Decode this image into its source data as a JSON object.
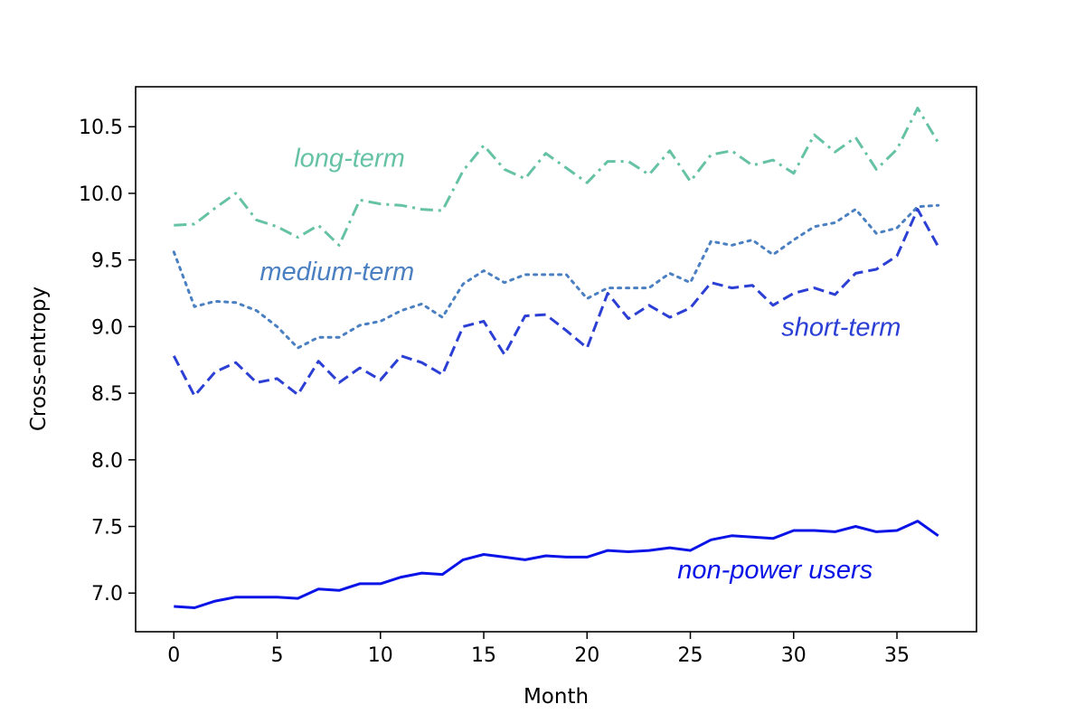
{
  "chart_data": {
    "type": "line",
    "title": "",
    "xlabel": "Month",
    "ylabel": "Cross-entropy",
    "xlim": [
      -1.85,
      38.85
    ],
    "ylim": [
      6.71,
      10.8
    ],
    "xticks": [
      0,
      5,
      10,
      15,
      20,
      25,
      30,
      35
    ],
    "yticks": [
      7.0,
      7.5,
      8.0,
      8.5,
      9.0,
      9.5,
      10.0,
      10.5
    ],
    "grid": false,
    "legend": "none",
    "x": [
      0,
      1,
      2,
      3,
      4,
      5,
      6,
      7,
      8,
      9,
      10,
      11,
      12,
      13,
      14,
      15,
      16,
      17,
      18,
      19,
      20,
      21,
      22,
      23,
      24,
      25,
      26,
      27,
      28,
      29,
      30,
      31,
      32,
      33,
      34,
      35,
      36,
      37
    ],
    "series": [
      {
        "name": "long-term",
        "color": "#66c2a5",
        "style": "dashdot",
        "label_at": [
          8.5,
          10.2
        ],
        "values": [
          9.76,
          9.77,
          9.89,
          10.0,
          9.8,
          9.75,
          9.67,
          9.76,
          9.61,
          9.95,
          9.92,
          9.91,
          9.88,
          9.87,
          10.17,
          10.36,
          10.18,
          10.11,
          10.3,
          10.19,
          10.08,
          10.24,
          10.24,
          10.14,
          10.32,
          10.09,
          10.29,
          10.32,
          10.21,
          10.25,
          10.15,
          10.44,
          10.31,
          10.42,
          10.18,
          10.33,
          10.64,
          10.38
        ]
      },
      {
        "name": "medium-term",
        "color": "#4a7fc1",
        "style": "dotted",
        "label_at": [
          7.9,
          9.35
        ],
        "values": [
          9.56,
          9.15,
          9.19,
          9.18,
          9.12,
          9.0,
          8.84,
          8.92,
          8.92,
          9.01,
          9.04,
          9.12,
          9.17,
          9.07,
          9.32,
          9.42,
          9.33,
          9.39,
          9.39,
          9.39,
          9.21,
          9.29,
          9.29,
          9.29,
          9.4,
          9.33,
          9.64,
          9.61,
          9.65,
          9.54,
          9.65,
          9.75,
          9.78,
          9.88,
          9.7,
          9.74,
          9.9,
          9.91
        ]
      },
      {
        "name": "short-term",
        "color": "#2b3fd4",
        "style": "dashed",
        "label_at": [
          32.3,
          8.93
        ],
        "values": [
          8.78,
          8.48,
          8.66,
          8.73,
          8.58,
          8.61,
          8.49,
          8.74,
          8.58,
          8.69,
          8.6,
          8.78,
          8.73,
          8.64,
          9.0,
          9.04,
          8.79,
          9.08,
          9.09,
          8.97,
          8.84,
          9.25,
          9.06,
          9.16,
          9.07,
          9.14,
          9.33,
          9.29,
          9.31,
          9.16,
          9.25,
          9.29,
          9.24,
          9.4,
          9.43,
          9.53,
          9.88,
          9.6
        ]
      },
      {
        "name": "non-power users",
        "color": "#0a14e6",
        "style": "solid",
        "label_at": [
          29.1,
          7.11
        ],
        "values": [
          6.9,
          6.89,
          6.94,
          6.97,
          6.97,
          6.97,
          6.96,
          7.03,
          7.02,
          7.07,
          7.07,
          7.12,
          7.15,
          7.14,
          7.25,
          7.29,
          7.27,
          7.25,
          7.28,
          7.27,
          7.27,
          7.32,
          7.31,
          7.32,
          7.34,
          7.32,
          7.4,
          7.43,
          7.42,
          7.41,
          7.47,
          7.47,
          7.46,
          7.5,
          7.46,
          7.47,
          7.54,
          7.43
        ]
      }
    ]
  }
}
